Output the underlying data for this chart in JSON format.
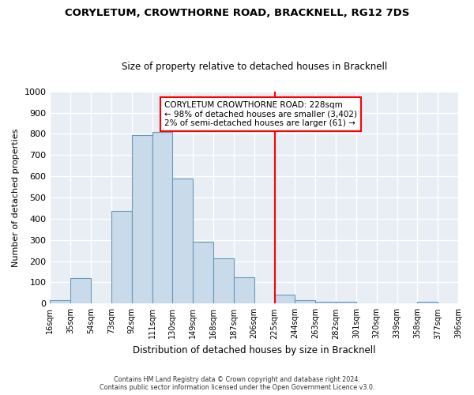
{
  "title": "CORYLETUM, CROWTHORNE ROAD, BRACKNELL, RG12 7DS",
  "subtitle": "Size of property relative to detached houses in Bracknell",
  "xlabel": "Distribution of detached houses by size in Bracknell",
  "ylabel": "Number of detached properties",
  "bin_labels": [
    "16sqm",
    "35sqm",
    "54sqm",
    "73sqm",
    "92sqm",
    "111sqm",
    "130sqm",
    "149sqm",
    "168sqm",
    "187sqm",
    "206sqm",
    "225sqm",
    "244sqm",
    "263sqm",
    "282sqm",
    "301sqm",
    "320sqm",
    "339sqm",
    "358sqm",
    "377sqm",
    "396sqm"
  ],
  "bar_heights": [
    15,
    120,
    0,
    435,
    795,
    808,
    590,
    292,
    215,
    125,
    0,
    42,
    15,
    10,
    10,
    0,
    0,
    0,
    10,
    0
  ],
  "bar_color": "#c9daea",
  "bar_edge_color": "#6699bb",
  "vline_x": 11,
  "vline_color": "red",
  "annotation_text": "CORYLETUM CROWTHORNE ROAD: 228sqm\n← 98% of detached houses are smaller (3,402)\n2% of semi-detached houses are larger (61) →",
  "annotation_box_color": "white",
  "annotation_box_edge_color": "red",
  "ylim": [
    0,
    1000
  ],
  "yticks": [
    0,
    100,
    200,
    300,
    400,
    500,
    600,
    700,
    800,
    900,
    1000
  ],
  "footer": "Contains HM Land Registry data © Crown copyright and database right 2024.\nContains public sector information licensed under the Open Government Licence v3.0.",
  "fig_bg_color": "#ffffff",
  "plot_bg_color": "#e8eef4",
  "grid_color": "#ffffff",
  "title_fontsize": 9.5,
  "subtitle_fontsize": 8.5
}
